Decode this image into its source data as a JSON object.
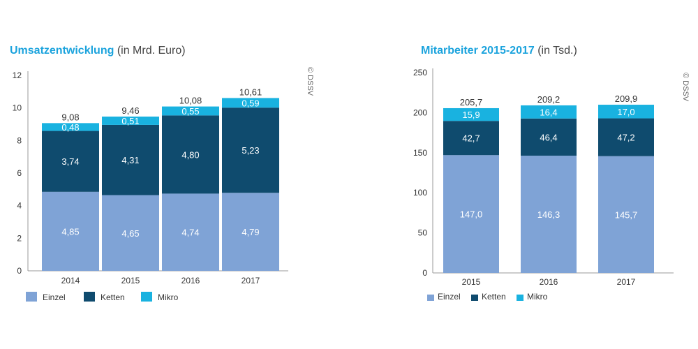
{
  "chart_data": [
    {
      "type": "bar",
      "stacked": true,
      "title": "Umsatzentwicklung",
      "subtitle": "(in Mrd. Euro)",
      "categories": [
        "2014",
        "2015",
        "2016",
        "2017"
      ],
      "series": [
        {
          "name": "Einzel",
          "color": "#7fa3d6",
          "values": [
            4.85,
            4.65,
            4.74,
            4.79
          ],
          "labels": [
            "4,85",
            "4,65",
            "4,74",
            "4,79"
          ]
        },
        {
          "name": "Ketten",
          "color": "#0f4b6e",
          "values": [
            3.74,
            4.31,
            4.8,
            5.23
          ],
          "labels": [
            "3,74",
            "4,31",
            "4,80",
            "5,23"
          ]
        },
        {
          "name": "Mikro",
          "color": "#19b2e0",
          "values": [
            0.48,
            0.51,
            0.55,
            0.59
          ],
          "labels": [
            "0,48",
            "0,51",
            "0,55",
            "0,59"
          ]
        }
      ],
      "totals": [
        "9,08",
        "9,46",
        "10,08",
        "10,61"
      ],
      "yticks": [
        0,
        2,
        4,
        6,
        8,
        10,
        12
      ],
      "ylim": [
        0,
        12
      ],
      "legend_position": "bottom-left",
      "source": "© DSSV"
    },
    {
      "type": "bar",
      "stacked": true,
      "title": "Mitarbeiter 2015-2017",
      "subtitle": "(in Tsd.)",
      "categories": [
        "2015",
        "2016",
        "2017"
      ],
      "series": [
        {
          "name": "Einzel",
          "color": "#7fa3d6",
          "values": [
            147.0,
            146.3,
            145.7
          ],
          "labels": [
            "147,0",
            "146,3",
            "145,7"
          ]
        },
        {
          "name": "Ketten",
          "color": "#0f4b6e",
          "values": [
            42.7,
            46.4,
            47.2
          ],
          "labels": [
            "42,7",
            "46,4",
            "47,2"
          ]
        },
        {
          "name": "Mikro",
          "color": "#19b2e0",
          "values": [
            15.9,
            16.4,
            17.0
          ],
          "labels": [
            "15,9",
            "16,4",
            "17,0"
          ]
        }
      ],
      "totals": [
        "205,7",
        "209,2",
        "209,9"
      ],
      "yticks": [
        0,
        50,
        100,
        150,
        200,
        250
      ],
      "ylim": [
        0,
        250
      ],
      "legend_position": "bottom-left",
      "source": "© DSSV"
    }
  ]
}
